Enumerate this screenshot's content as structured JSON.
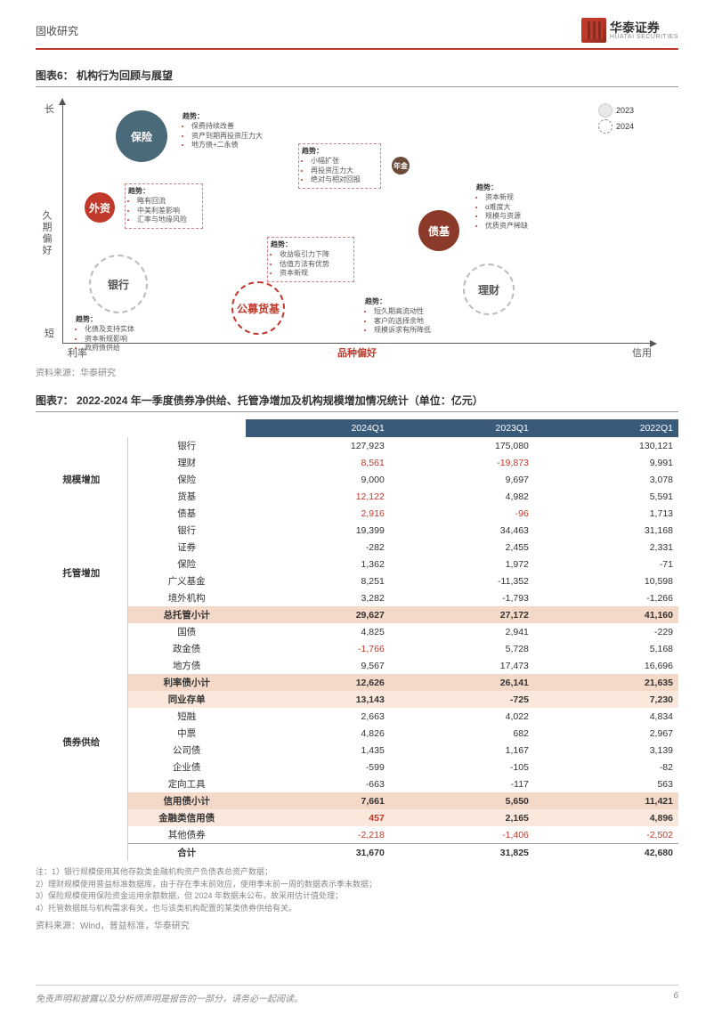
{
  "header": {
    "category": "固收研究",
    "logo_cn": "华泰证券",
    "logo_en": "HUATAI SECURITIES"
  },
  "chart6": {
    "title": "图表6：  机构行为回顾与展望",
    "source": "资料来源：华泰研究",
    "y_axis_top": "长",
    "y_axis_mid": "久期偏好",
    "y_axis_bottom": "短",
    "x_axis_left": "利率",
    "x_axis_mid": "品种偏好",
    "x_axis_right": "信用",
    "legend_2023": "2023",
    "legend_2024": "2024",
    "bubbles": {
      "insurance": {
        "label": "保险",
        "fill": "#4a6a7a",
        "text_color": "#ffffff",
        "size": 58
      },
      "foreign": {
        "label": "外资",
        "fill": "#c0392b",
        "text_color": "#ffffff",
        "size": 34
      },
      "bank": {
        "label": "银行",
        "fill": "#ffffff",
        "text_color": "#555555",
        "size": 62,
        "border": "#bbbbbb"
      },
      "mmf": {
        "label": "公募货基",
        "fill": "#ffffff",
        "text_color": "#c0392b",
        "size": 56,
        "border": "#c0392b"
      },
      "bondfund": {
        "label": "债基",
        "fill": "#8b3a2a",
        "text_color": "#ffffff",
        "size": 46
      },
      "wealth": {
        "label": "理财",
        "fill": "#ffffff",
        "text_color": "#555555",
        "size": 54,
        "border": "#bbbbbb"
      },
      "annuity": {
        "label": "年金",
        "fill": "#6b4a3a",
        "text_color": "#ffffff",
        "size": 20
      }
    },
    "callouts": {
      "insurance": {
        "title": "趋势：",
        "items": [
          "保费持续改善",
          "资产到期再投资压力大",
          "地方债+二永债"
        ]
      },
      "foreign": {
        "title": "趋势：",
        "items": [
          "略有回流",
          "中美利差影响",
          "汇率与地缘风险"
        ]
      },
      "bank": {
        "title": "趋势：",
        "items": [
          "化债及支持实体",
          "资本新规影响",
          "政府债供给"
        ]
      },
      "mmf": {
        "title": "趋势：",
        "items": [
          "收益吸引力下降",
          "估值方法有优势",
          "资本新规"
        ]
      },
      "annuity": {
        "title": "趋势：",
        "items": [
          "小幅扩张",
          "再投资压力大",
          "绝对与相对回报"
        ]
      },
      "bondfund": {
        "title": "趋势：",
        "items": [
          "资本新规",
          "α难度大",
          "规模与资源",
          "优质资产稀缺"
        ]
      },
      "wealth": {
        "title": "趋势：",
        "items": [
          "短久期高流动性",
          "客户的选择余地",
          "规模诉求有所降低"
        ]
      }
    }
  },
  "chart7": {
    "title": "图表7：  2022-2024 年一季度债券净供给、托管净增加及机构规模增加情况统计（单位：亿元）",
    "columns": [
      "",
      "",
      "2024Q1",
      "2023Q1",
      "2022Q1"
    ],
    "groups": [
      {
        "label": "规模增加",
        "rows": [
          {
            "name": "银行",
            "v": [
              "127,923",
              "175,080",
              "130,121"
            ],
            "red": [
              false,
              false,
              false
            ]
          },
          {
            "name": "理财",
            "v": [
              "8,561",
              "-19,873",
              "9,991"
            ],
            "red": [
              true,
              true,
              false
            ]
          },
          {
            "name": "保险",
            "v": [
              "9,000",
              "9,697",
              "3,078"
            ],
            "red": [
              false,
              false,
              false
            ]
          },
          {
            "name": "货基",
            "v": [
              "12,122",
              "4,982",
              "5,591"
            ],
            "red": [
              true,
              false,
              false
            ]
          },
          {
            "name": "债基",
            "v": [
              "2,916",
              "-96",
              "1,713"
            ],
            "red": [
              true,
              true,
              false
            ]
          }
        ]
      },
      {
        "label": "托管增加",
        "rows": [
          {
            "name": "银行",
            "v": [
              "19,399",
              "34,463",
              "31,168"
            ],
            "red": [
              false,
              false,
              false
            ]
          },
          {
            "name": "证券",
            "v": [
              "-282",
              "2,455",
              "2,331"
            ],
            "red": [
              false,
              false,
              false
            ]
          },
          {
            "name": "保险",
            "v": [
              "1,362",
              "1,972",
              "-71"
            ],
            "red": [
              false,
              false,
              false
            ]
          },
          {
            "name": "广义基金",
            "v": [
              "8,251",
              "-11,352",
              "10,598"
            ],
            "red": [
              false,
              false,
              false
            ]
          },
          {
            "name": "境外机构",
            "v": [
              "3,282",
              "-1,793",
              "-1,266"
            ],
            "red": [
              false,
              false,
              false
            ]
          }
        ],
        "subtotal": {
          "name": "总托管小计",
          "v": [
            "29,627",
            "27,172",
            "41,160"
          ],
          "style": "hl"
        }
      },
      {
        "label": "债券供给",
        "rows": [
          {
            "name": "国债",
            "v": [
              "4,825",
              "2,941",
              "-229"
            ],
            "red": [
              false,
              false,
              false
            ]
          },
          {
            "name": "政金债",
            "v": [
              "-1,766",
              "5,728",
              "5,168"
            ],
            "red": [
              true,
              false,
              false
            ]
          },
          {
            "name": "地方债",
            "v": [
              "9,567",
              "17,473",
              "16,696"
            ],
            "red": [
              false,
              false,
              false
            ]
          },
          {
            "sub": true,
            "name": "利率债小计",
            "v": [
              "12,626",
              "26,141",
              "21,635"
            ],
            "style": "hl"
          },
          {
            "name": "同业存单",
            "v": [
              "13,143",
              "-725",
              "7,230"
            ],
            "red": [
              false,
              false,
              false
            ],
            "style": "hl-soft"
          },
          {
            "name": "短融",
            "v": [
              "2,663",
              "4,022",
              "4,834"
            ],
            "red": [
              false,
              false,
              false
            ]
          },
          {
            "name": "中票",
            "v": [
              "4,826",
              "682",
              "2,967"
            ],
            "red": [
              false,
              false,
              false
            ]
          },
          {
            "name": "公司债",
            "v": [
              "1,435",
              "1,167",
              "3,139"
            ],
            "red": [
              false,
              false,
              false
            ]
          },
          {
            "name": "企业债",
            "v": [
              "-599",
              "-105",
              "-82"
            ],
            "red": [
              false,
              false,
              false
            ]
          },
          {
            "name": "定向工具",
            "v": [
              "-663",
              "-117",
              "563"
            ],
            "red": [
              false,
              false,
              false
            ]
          },
          {
            "sub": true,
            "name": "信用债小计",
            "v": [
              "7,661",
              "5,650",
              "11,421"
            ],
            "style": "hl"
          },
          {
            "name": "金融类信用债",
            "v": [
              "457",
              "2,165",
              "4,896"
            ],
            "red": [
              true,
              false,
              false
            ],
            "style": "hl-soft"
          },
          {
            "name": "其他债券",
            "v": [
              "-2,218",
              "-1,406",
              "-2,502"
            ],
            "red": [
              true,
              true,
              true
            ]
          }
        ],
        "subtotal": {
          "name": "合计",
          "v": [
            "31,670",
            "31,825",
            "42,680"
          ],
          "style": "grand"
        }
      }
    ],
    "notes": [
      "注：1）银行规模使用其他存款类金融机构资产负债表总资产数据；",
      "2）理财规模使用普益标准数据库，由于存在季末前效应，使用季末前一周的数据表示季末数据；",
      "3）保险规模使用保险资金运用余额数据，但 2024 年数据未公布，故采用估计值处理；",
      "4）托管数据既与机构需求有关，也与该类机构配置的某类债券供给有关。"
    ],
    "source": "资料来源：Wind，普益标准，华泰研究"
  },
  "footer": {
    "disclaimer": "免责声明和披露以及分析师声明是报告的一部分，请务必一起阅读。",
    "page_num": "6"
  }
}
